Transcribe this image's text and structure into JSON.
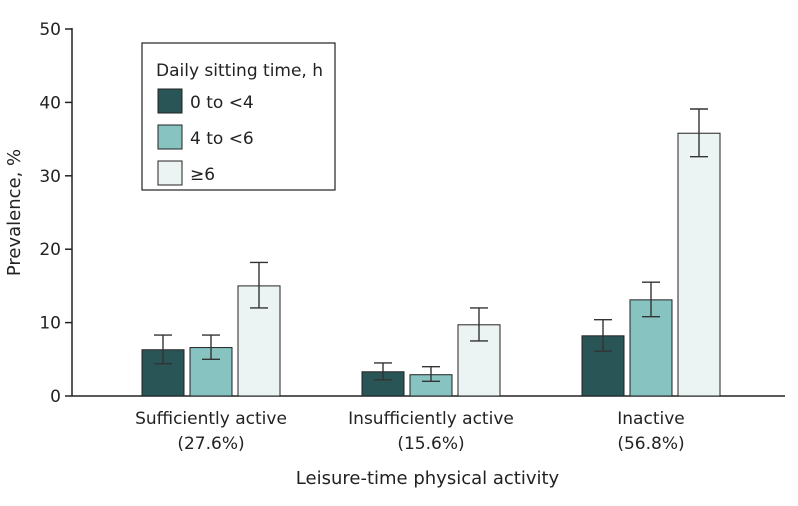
{
  "chart_data": {
    "type": "bar",
    "xlabel": "Leisure-time physical activity",
    "ylabel": "Prevalence, %",
    "ylim": [
      0,
      50
    ],
    "yticks": [
      0,
      10,
      20,
      30,
      40,
      50
    ],
    "grid": false,
    "legend": {
      "title": "Daily sitting time, h",
      "placement": "top-left"
    },
    "categories": [
      {
        "name": "Sufficiently active",
        "share": "(27.6%)"
      },
      {
        "name": "Insufficiently active",
        "share": "(15.6%)"
      },
      {
        "name": "Inactive",
        "share": "(56.8%)"
      }
    ],
    "series": [
      {
        "name": "0 to <4",
        "color": "#2a5557",
        "values": [
          6.3,
          3.3,
          8.2
        ],
        "ci_low": [
          4.4,
          2.2,
          6.1
        ],
        "ci_high": [
          8.3,
          4.5,
          10.4
        ]
      },
      {
        "name": "4 to <6",
        "color": "#86c3c1",
        "values": [
          6.6,
          2.9,
          13.1
        ],
        "ci_low": [
          5.0,
          2.0,
          10.8
        ],
        "ci_high": [
          8.3,
          4.0,
          15.5
        ]
      },
      {
        "name": "≥6",
        "color": "#ecf3f3",
        "values": [
          15.0,
          9.7,
          35.8
        ],
        "ci_low": [
          12.0,
          7.5,
          32.6
        ],
        "ci_high": [
          18.2,
          12.0,
          39.1
        ]
      }
    ]
  }
}
